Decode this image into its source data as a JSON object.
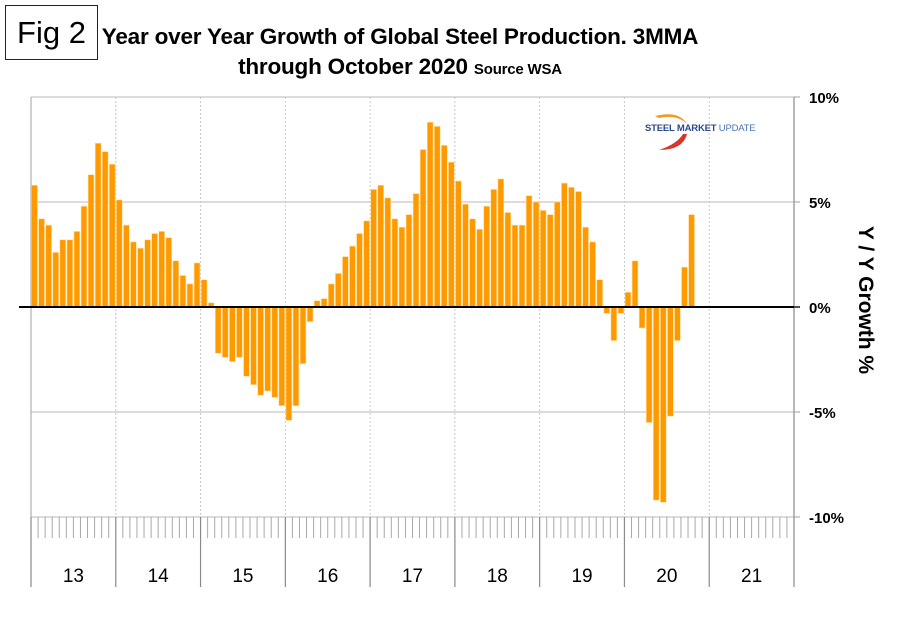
{
  "figure": {
    "label": "Fig 2",
    "title_line1": "Year over Year Growth of Global Steel Production. 3MMA",
    "title_line2": "through October 2020",
    "source": "Source WSA"
  },
  "logo": {
    "part1": "STEEL",
    "part2": "MARKET",
    "part3": "UPDATE"
  },
  "colors": {
    "bar": "#FF9900",
    "bar_edge": "#FFE0A0",
    "zero_line": "#000000",
    "grid": "#d0d0d0"
  },
  "chart_data": {
    "type": "bar",
    "title": "Year over Year Growth of Global Steel Production. 3MMA through October 2020",
    "subtitle": "Source WSA",
    "xlabel": "",
    "ylabel": "Y / Y Growth %",
    "ylim": [
      -10,
      10
    ],
    "yticks": [
      10,
      5,
      0,
      -5,
      -10
    ],
    "ytick_labels": [
      "10%",
      "5%",
      "0%",
      "-5%",
      "-10%"
    ],
    "y_axis_side": "right",
    "year_labels": [
      "13",
      "14",
      "15",
      "16",
      "17",
      "18",
      "19",
      "20",
      "21"
    ],
    "x_start": "2013-01",
    "x_end_axis": "2021-12",
    "frequency": "monthly",
    "grid": true,
    "series": [
      {
        "name": "Y/Y Growth 3MMA",
        "start": "2013-01",
        "values": [
          5.8,
          4.2,
          3.9,
          2.6,
          3.2,
          3.2,
          3.6,
          4.8,
          6.3,
          7.8,
          7.4,
          6.8,
          5.1,
          3.9,
          3.1,
          2.8,
          3.2,
          3.5,
          3.6,
          3.3,
          2.2,
          1.5,
          1.1,
          2.1,
          1.3,
          0.2,
          -2.2,
          -2.4,
          -2.6,
          -2.4,
          -3.3,
          -3.7,
          -4.2,
          -4.0,
          -4.3,
          -4.7,
          -5.4,
          -4.7,
          -2.7,
          -0.7,
          0.3,
          0.4,
          1.1,
          1.6,
          2.4,
          2.9,
          3.5,
          4.1,
          5.6,
          5.8,
          5.2,
          4.2,
          3.8,
          4.4,
          5.4,
          7.5,
          8.8,
          8.6,
          7.7,
          6.9,
          6.0,
          4.9,
          4.2,
          3.7,
          4.8,
          5.6,
          6.1,
          4.5,
          3.9,
          3.9,
          5.3,
          5.0,
          4.6,
          4.4,
          5.0,
          5.9,
          5.7,
          5.5,
          3.8,
          3.1,
          1.3,
          -0.3,
          -1.6,
          -0.3,
          0.7,
          2.2,
          -1.0,
          -5.5,
          -9.2,
          -9.3,
          -5.2,
          -1.6,
          1.9,
          4.4
        ]
      }
    ]
  }
}
